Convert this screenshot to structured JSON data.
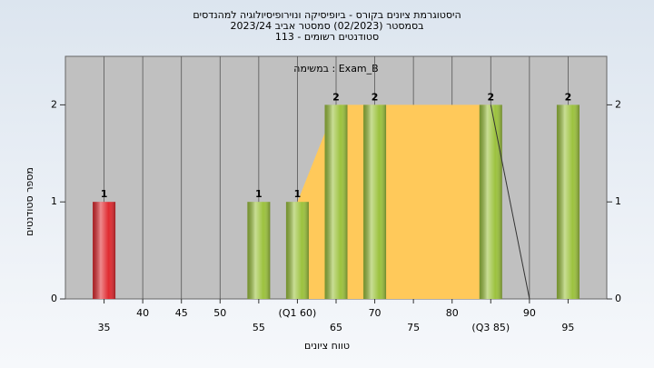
{
  "chart_data": {
    "type": "bar",
    "title_lines": [
      "היסטוגרמת ציונים בקורס - ביופיסיקה ונוירופיסיולוגיה למהנדסים",
      "בסמסטר (02/2023) סמסטר אביב 2023/24",
      "סטודנטים רשומים - 113"
    ],
    "annotation": "במשימה : Exam_B",
    "x_label": "טווח ציונים",
    "y_label": "מספר סטודנטים",
    "x": [
      35,
      55,
      60,
      65,
      70,
      85,
      95
    ],
    "values": [
      1,
      1,
      1,
      2,
      2,
      2,
      2
    ],
    "colors": [
      "#e02a30",
      "#9cc23e",
      "#9cc23e",
      "#9cc23e",
      "#9cc23e",
      "#9cc23e",
      "#9cc23e"
    ],
    "area": {
      "x": [
        60,
        65,
        85
      ],
      "values": [
        1,
        2,
        2
      ],
      "color": "#ffc95a"
    },
    "line": {
      "x": [
        85,
        90
      ],
      "values": [
        2,
        0
      ],
      "color": "#333333"
    },
    "xlim": [
      30,
      100
    ],
    "xticks": [
      35,
      40,
      45,
      50,
      55,
      {
        "value": 60,
        "label": "(Q1 60)"
      },
      65,
      70,
      75,
      80,
      {
        "value": 85,
        "label": "(Q3 85)"
      },
      90,
      95
    ],
    "ylim": [
      0,
      2.5
    ],
    "yticks": [
      0,
      1,
      2
    ],
    "grid": true
  }
}
